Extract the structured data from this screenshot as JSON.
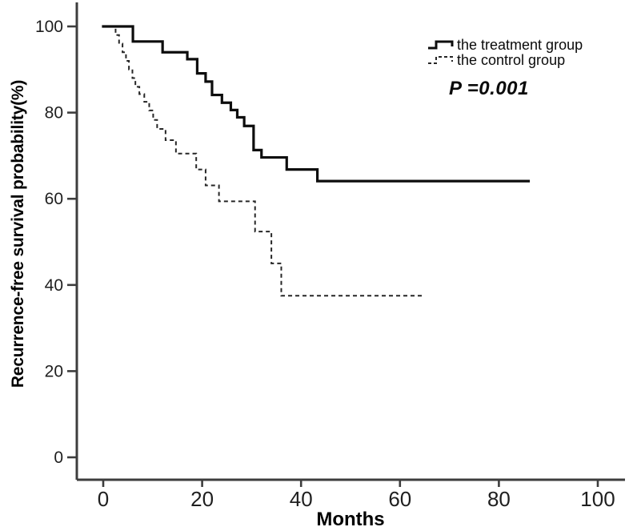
{
  "chart_data": {
    "type": "line",
    "subtype": "kaplan-meier-step-curves",
    "title": "",
    "xlabel": "Months",
    "ylabel": "Recurrence-free survival probability(%)",
    "xticks": [
      0,
      20,
      40,
      60,
      80,
      100
    ],
    "yticks": [
      0,
      20,
      40,
      60,
      80,
      100
    ],
    "xlim": [
      0,
      105
    ],
    "ylim": [
      0,
      100
    ],
    "grid": false,
    "legend_position": "top-right-inside",
    "p_label": "P =0.001",
    "axis_color": "#3d3d3d",
    "tick_label_color": "#1f1f1f",
    "series": [
      {
        "name": "the treatment group",
        "line_style": "solid",
        "color": "#0d0d0d",
        "points": [
          [
            0,
            100
          ],
          [
            6,
            96.5
          ],
          [
            12,
            94
          ],
          [
            17,
            92.4
          ],
          [
            19,
            89.1
          ],
          [
            20.7,
            87.2
          ],
          [
            22,
            84.1
          ],
          [
            24,
            82.3
          ],
          [
            25.8,
            80.6
          ],
          [
            27.1,
            78.9
          ],
          [
            28.5,
            76.9
          ],
          [
            30.4,
            71.3
          ],
          [
            32,
            69.6
          ],
          [
            37.1,
            66.8
          ],
          [
            43.3,
            64.1
          ],
          [
            86,
            64.1
          ]
        ]
      },
      {
        "name": "the control group",
        "line_style": "dashed",
        "color": "#262626",
        "points": [
          [
            1.5,
            100
          ],
          [
            2.5,
            98
          ],
          [
            3.2,
            96
          ],
          [
            3.9,
            94
          ],
          [
            4.6,
            92
          ],
          [
            5.2,
            90
          ],
          [
            5.9,
            88
          ],
          [
            6.5,
            86
          ],
          [
            7.3,
            84.3
          ],
          [
            8.3,
            82.5
          ],
          [
            9.3,
            80.5
          ],
          [
            10.1,
            78.3
          ],
          [
            10.9,
            76.2
          ],
          [
            12.6,
            73.6
          ],
          [
            14.7,
            70.5
          ],
          [
            18.8,
            66.8
          ],
          [
            20.7,
            63.1
          ],
          [
            23.4,
            59.4
          ],
          [
            30.7,
            52.4
          ],
          [
            34,
            45
          ],
          [
            36,
            37.5
          ],
          [
            65,
            37.5
          ]
        ]
      }
    ]
  }
}
